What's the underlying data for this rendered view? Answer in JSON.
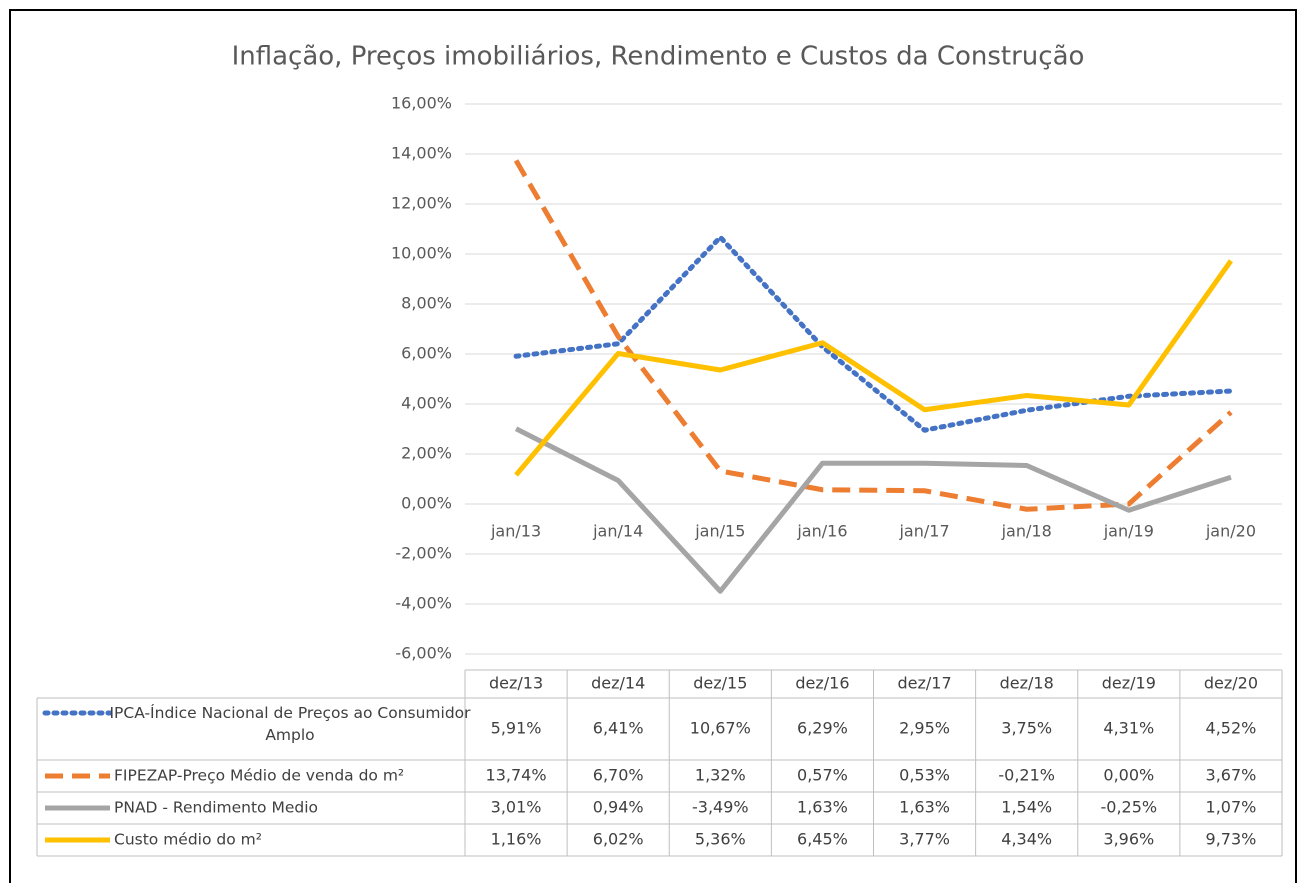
{
  "chart_data": {
    "type": "line",
    "title": "Inflação, Preços imobiliários, Rendimento e Custos  da Construção",
    "categories": [
      "jan/13",
      "jan/14",
      "jan/15",
      "jan/16",
      "jan/17",
      "jan/18",
      "jan/19",
      "jan/20"
    ],
    "table_columns": [
      "dez/13",
      "dez/14",
      "dez/15",
      "dez/16",
      "dez/17",
      "dez/18",
      "dez/19",
      "dez/20"
    ],
    "ylim": [
      -6,
      16
    ],
    "yticks": [
      {
        "value": -6,
        "label": "-6,00%"
      },
      {
        "value": -4,
        "label": "-4,00%"
      },
      {
        "value": -2,
        "label": "-2,00%"
      },
      {
        "value": 0,
        "label": "0,00%"
      },
      {
        "value": 2,
        "label": "2,00%"
      },
      {
        "value": 4,
        "label": "4,00%"
      },
      {
        "value": 6,
        "label": "6,00%"
      },
      {
        "value": 8,
        "label": "8,00%"
      },
      {
        "value": 10,
        "label": "10,00%"
      },
      {
        "value": 12,
        "label": "12,00%"
      },
      {
        "value": 14,
        "label": "14,00%"
      },
      {
        "value": 16,
        "label": "16,00%"
      }
    ],
    "grid": true,
    "series": [
      {
        "name": "IPCA-Índice Nacional de Preços ao Consumidor Amplo",
        "color": "#4472c4",
        "dash": "dot",
        "values": [
          5.91,
          6.41,
          10.67,
          6.29,
          2.95,
          3.75,
          4.31,
          4.52
        ],
        "value_labels": [
          "5,91%",
          "6,41%",
          "10,67%",
          "6,29%",
          "2,95%",
          "3,75%",
          "4,31%",
          "4,52%"
        ]
      },
      {
        "name": "FIPEZAP-Preço Médio de venda do m²",
        "color": "#ed7d31",
        "dash": "dash",
        "values": [
          13.74,
          6.7,
          1.32,
          0.57,
          0.53,
          -0.21,
          0.0,
          3.67
        ],
        "value_labels": [
          "13,74%",
          "6,70%",
          "1,32%",
          "0,57%",
          "0,53%",
          "-0,21%",
          "0,00%",
          "3,67%"
        ]
      },
      {
        "name": "PNAD - Rendimento Medio",
        "color": "#a5a5a5",
        "dash": "solid",
        "values": [
          3.01,
          0.94,
          -3.49,
          1.63,
          1.63,
          1.54,
          -0.25,
          1.07
        ],
        "value_labels": [
          "3,01%",
          "0,94%",
          "-3,49%",
          "1,63%",
          "1,63%",
          "1,54%",
          "-0,25%",
          "1,07%"
        ]
      },
      {
        "name": "Custo médio do m²",
        "color": "#ffc000",
        "dash": "solid",
        "values": [
          1.16,
          6.02,
          5.36,
          6.45,
          3.77,
          4.34,
          3.96,
          9.73
        ],
        "value_labels": [
          "1,16%",
          "6,02%",
          "5,36%",
          "6,45%",
          "3,77%",
          "4,34%",
          "3,96%",
          "9,73%"
        ]
      }
    ]
  }
}
